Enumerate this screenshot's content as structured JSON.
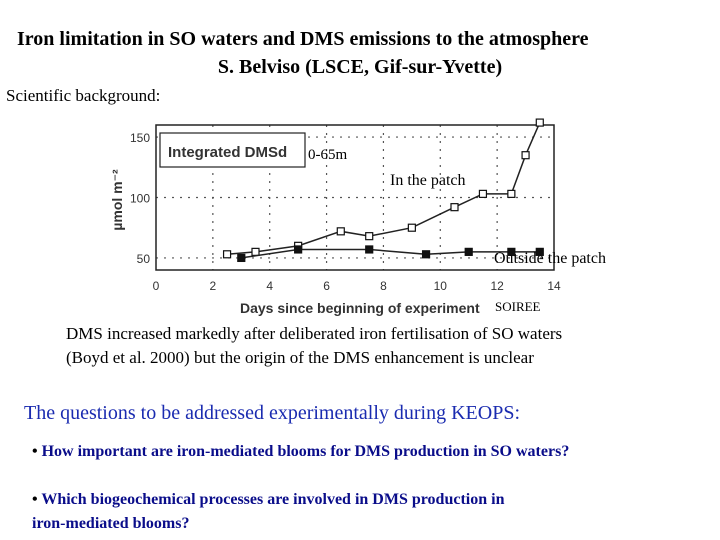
{
  "header": {
    "title_line1": "Iron limitation in SO waters and DMS emissions to the atmosphere",
    "title_line2": "S. Belviso (LSCE, Gif-sur-Yvette)"
  },
  "background_label": "Scientific background:",
  "chart_data": {
    "type": "line",
    "title": "",
    "legend_box": "Integrated DMSd",
    "depth_label": "0-65m",
    "xlabel": "Days since beginning of experiment",
    "ylabel": "µmol m⁻²",
    "source_label": "SOIREE",
    "xlim": [
      0,
      14
    ],
    "ylim": [
      40,
      160
    ],
    "xticks": [
      "0",
      "2",
      "4",
      "6",
      "8",
      "10",
      "12",
      "14"
    ],
    "yticks": [
      "50",
      "100",
      "150"
    ],
    "grid": true,
    "series": [
      {
        "name": "In the patch",
        "marker": "open-square",
        "x": [
          2.5,
          3.5,
          5,
          6.5,
          7.5,
          9,
          10.5,
          11.5,
          12.5,
          13,
          13.5
        ],
        "y": [
          53,
          55,
          60,
          72,
          68,
          75,
          92,
          103,
          103,
          135,
          162
        ]
      },
      {
        "name": "Outside the patch",
        "marker": "filled-square",
        "x": [
          3,
          5,
          7.5,
          9.5,
          11,
          12.5,
          13.5
        ],
        "y": [
          50,
          57,
          57,
          53,
          55,
          55,
          55
        ]
      }
    ]
  },
  "paragraph": {
    "line1": "DMS increased markedly after deliberated  iron fertilisation of SO waters",
    "line2": "(Boyd et al. 2000) but the origin of the DMS enhancement is unclear"
  },
  "questions_heading": "The questions to be addressed experimentally during KEOPS:",
  "bullets": {
    "marker": "•",
    "item1": "How important are iron-mediated blooms for DMS production in SO waters?",
    "item2_line1": "Which biogeochemical processes are involved in DMS production in",
    "item2_line2": "iron-mediated blooms?"
  },
  "colors": {
    "question_blue": "#1a2bb0",
    "bullet_blue": "#0a0d8a"
  }
}
